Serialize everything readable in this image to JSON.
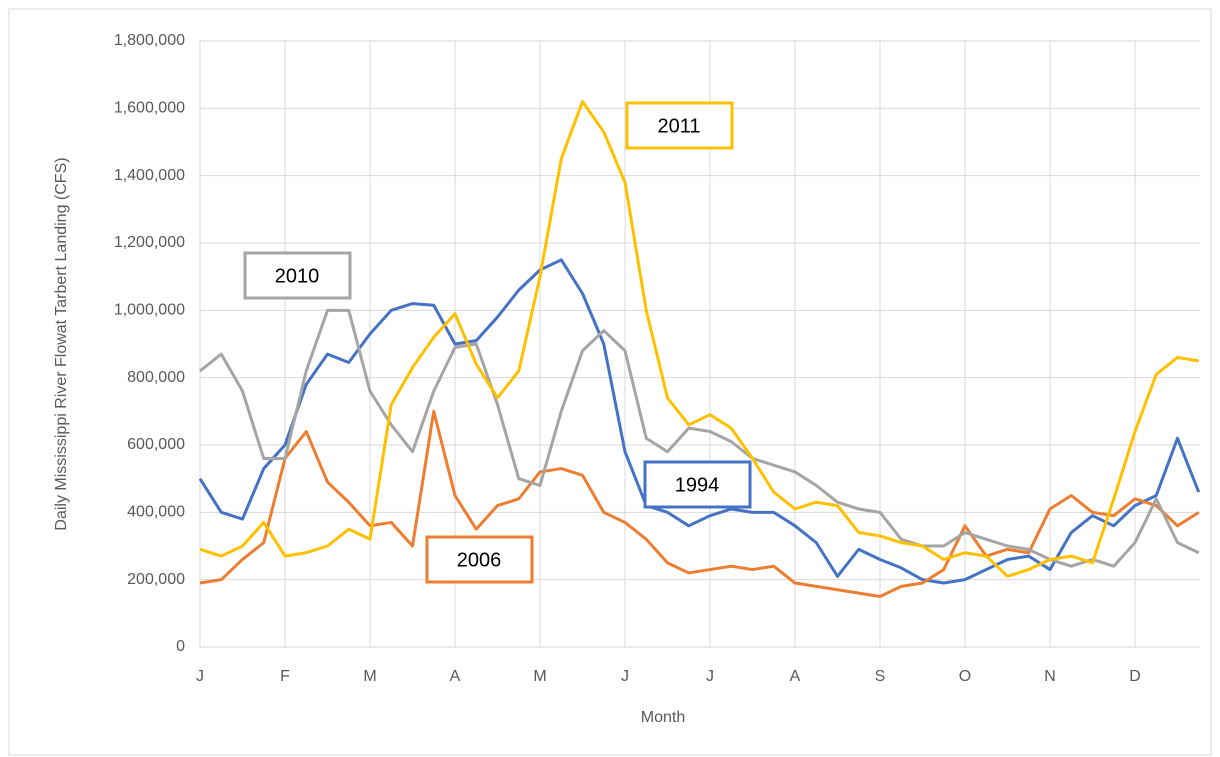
{
  "chart_data": {
    "type": "line",
    "x_label": "Month",
    "y_label": "Daily Mississippi River Flowat Tarbert Landing (CFS)",
    "categories": [
      "J",
      null,
      null,
      null,
      "F",
      null,
      null,
      null,
      "M",
      null,
      null,
      null,
      "A",
      null,
      null,
      null,
      "M",
      null,
      null,
      null,
      "J",
      null,
      null,
      null,
      "J",
      null,
      null,
      null,
      "A",
      null,
      null,
      null,
      "S",
      null,
      null,
      null,
      "O",
      null,
      null,
      null,
      "N",
      null,
      null,
      null,
      "D",
      null,
      null,
      null
    ],
    "ylim": [
      0,
      1800000
    ],
    "yticks": [
      0,
      {
        "value": 200000,
        "label": "200,000"
      },
      {
        "value": 400000,
        "label": "400,000"
      },
      {
        "value": 600000,
        "label": "600,000"
      },
      {
        "value": 800000,
        "label": "800,000"
      },
      {
        "value": 1000000,
        "label": "1,000,000"
      },
      {
        "value": 1200000,
        "label": "1,200,000"
      },
      {
        "value": 1400000,
        "label": "1,400,000"
      },
      {
        "value": 1600000,
        "label": "1,600,000"
      },
      {
        "value": 1800000,
        "label": "1,800,000"
      }
    ],
    "grid": true,
    "series": [
      {
        "name": "1994",
        "color": "#4472c4",
        "values": [
          500000,
          400000,
          380000,
          530000,
          600000,
          780000,
          870000,
          845000,
          930000,
          1000000,
          1020000,
          1015000,
          900000,
          910000,
          980000,
          1060000,
          1120000,
          1150000,
          1050000,
          900000,
          580000,
          420000,
          400000,
          360000,
          390000,
          410000,
          400000,
          400000,
          360000,
          310000,
          210000,
          290000,
          260000,
          235000,
          200000,
          190000,
          200000,
          230000,
          260000,
          270000,
          230000,
          340000,
          390000,
          360000,
          420000,
          450000,
          620000,
          460000
        ]
      },
      {
        "name": "2006",
        "color": "#ed7d31",
        "values": [
          190000,
          200000,
          260000,
          310000,
          560000,
          640000,
          490000,
          430000,
          360000,
          370000,
          300000,
          700000,
          450000,
          350000,
          420000,
          440000,
          520000,
          530000,
          510000,
          400000,
          370000,
          320000,
          250000,
          220000,
          230000,
          240000,
          230000,
          240000,
          190000,
          180000,
          170000,
          160000,
          150000,
          180000,
          190000,
          230000,
          360000,
          270000,
          290000,
          280000,
          410000,
          450000,
          400000,
          390000,
          440000,
          420000,
          360000,
          400000
        ]
      },
      {
        "name": "2010",
        "color": "#a5a5a5",
        "values": [
          820000,
          870000,
          760000,
          560000,
          560000,
          820000,
          1000000,
          1000000,
          760000,
          660000,
          580000,
          760000,
          890000,
          900000,
          720000,
          500000,
          480000,
          700000,
          880000,
          940000,
          880000,
          620000,
          580000,
          650000,
          640000,
          610000,
          560000,
          540000,
          520000,
          480000,
          430000,
          410000,
          400000,
          320000,
          300000,
          300000,
          340000,
          320000,
          300000,
          290000,
          260000,
          240000,
          260000,
          240000,
          310000,
          440000,
          310000,
          280000
        ]
      },
      {
        "name": "2011",
        "color": "#ffc000",
        "values": [
          290000,
          270000,
          300000,
          370000,
          270000,
          280000,
          300000,
          350000,
          320000,
          720000,
          830000,
          920000,
          990000,
          840000,
          740000,
          820000,
          1100000,
          1450000,
          1620000,
          1530000,
          1380000,
          1000000,
          740000,
          660000,
          690000,
          650000,
          560000,
          460000,
          410000,
          430000,
          420000,
          340000,
          330000,
          310000,
          300000,
          260000,
          280000,
          270000,
          210000,
          230000,
          260000,
          270000,
          250000,
          440000,
          640000,
          810000,
          860000,
          850000
        ]
      }
    ]
  }
}
